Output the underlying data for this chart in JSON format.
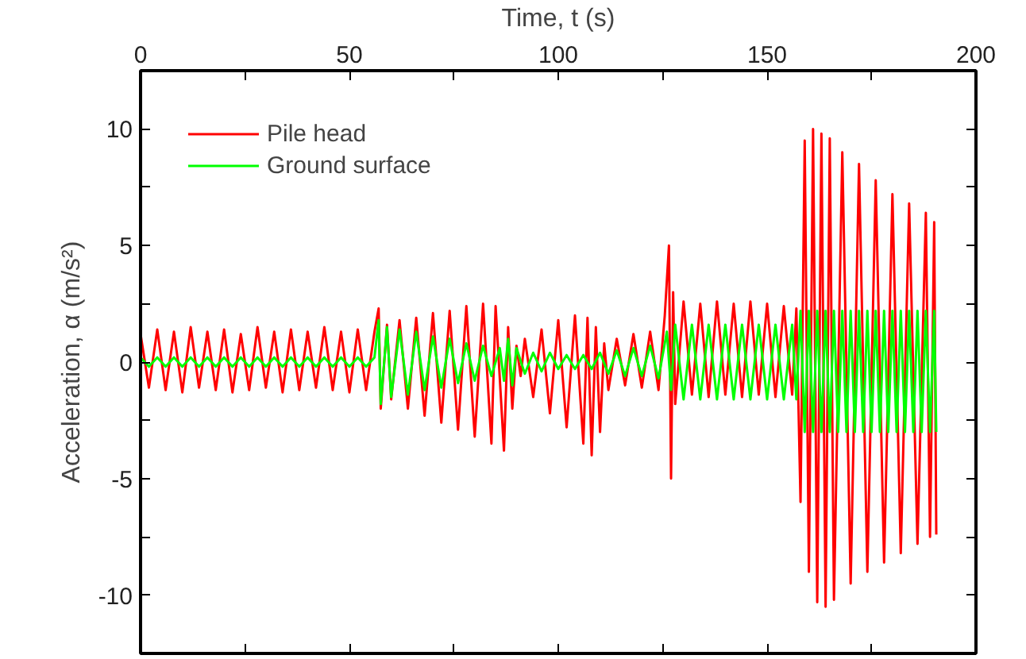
{
  "chart_data": {
    "type": "line",
    "xlabel": "Time, t (s)",
    "ylabel": "Acceleration, α (m/s²)",
    "xlim": [
      0,
      200
    ],
    "ylim": [
      -12.5,
      12.5
    ],
    "xticks": [
      0,
      {
        "value": 25,
        "label": null
      },
      50,
      {
        "value": 75,
        "label": null
      },
      100,
      {
        "value": 125,
        "label": null
      },
      150,
      {
        "value": 175,
        "label": null
      },
      200
    ],
    "yticks": [
      -10,
      {
        "value": -7.5,
        "label": null
      },
      -5,
      {
        "value": -2.5,
        "label": null
      },
      0,
      {
        "value": 2.5,
        "label": null
      },
      5,
      {
        "value": 7.5,
        "label": null
      },
      10
    ],
    "grid": false,
    "legend": "top left",
    "marker": "none",
    "line_style": "solid",
    "series": [
      {
        "name": "Pile head",
        "color": "#ff0000",
        "x": [
          0,
          2,
          4,
          6,
          8,
          10,
          12,
          14,
          16,
          18,
          20,
          22,
          24,
          26,
          28,
          30,
          32,
          34,
          36,
          38,
          40,
          42,
          44,
          46,
          48,
          50,
          52,
          54,
          56,
          57,
          57.5,
          59,
          60,
          62,
          64,
          66,
          68,
          70,
          72,
          74,
          76,
          78,
          80,
          82,
          84,
          85,
          87,
          88,
          89,
          90,
          91,
          92,
          94,
          96,
          98,
          100,
          102,
          104,
          106,
          107,
          108,
          109,
          110,
          111,
          112,
          114,
          116,
          118,
          120,
          122,
          124,
          125.5,
          126.5,
          127,
          127.5,
          128,
          130,
          132,
          134,
          136,
          138,
          140,
          142,
          144,
          146,
          148,
          150,
          152,
          154,
          156,
          157,
          158,
          159,
          160,
          161,
          162,
          163,
          164,
          165,
          166,
          168,
          170,
          172,
          174,
          176,
          178,
          180,
          182,
          184,
          186,
          188,
          189,
          190,
          190.5
        ],
        "values": [
          1.2,
          -1.1,
          1.4,
          -1.2,
          1.3,
          -1.3,
          1.5,
          -1.1,
          1.3,
          -1.2,
          1.4,
          -1.3,
          1.2,
          -1.2,
          1.5,
          -1.1,
          1.3,
          -1.3,
          1.4,
          -1.2,
          1.3,
          -1.1,
          1.5,
          -1.2,
          1.3,
          -1.3,
          1.4,
          -1.2,
          1.3,
          2.3,
          -2.0,
          1.6,
          -1.6,
          1.8,
          -2.0,
          1.9,
          -2.3,
          2.1,
          -2.6,
          2.2,
          -2.9,
          2.4,
          -3.2,
          2.5,
          -3.5,
          2.4,
          -3.8,
          1.5,
          -2.0,
          0.7,
          -0.6,
          1.0,
          -1.5,
          1.4,
          -2.2,
          1.8,
          -2.8,
          2.0,
          -3.5,
          1.9,
          -4.0,
          1.5,
          -3.0,
          0.8,
          -1.2,
          1.0,
          -1.0,
          1.2,
          -1.1,
          1.3,
          -1.2,
          2.0,
          5.0,
          -5.0,
          3.0,
          -1.8,
          2.6,
          -1.4,
          2.5,
          -1.5,
          2.6,
          -1.4,
          2.5,
          -1.5,
          2.6,
          -1.4,
          2.5,
          -1.5,
          2.4,
          -1.4,
          2.3,
          -6.0,
          9.5,
          -9.0,
          10.0,
          -10.3,
          9.8,
          -10.5,
          9.6,
          -10.2,
          9.0,
          -9.5,
          8.5,
          -9.0,
          7.8,
          -8.6,
          7.2,
          -8.2,
          6.8,
          -7.8,
          6.4,
          -7.5,
          6.0,
          -7.4
        ]
      },
      {
        "name": "Ground surface",
        "color": "#00ff00",
        "x": [
          0,
          2,
          4,
          6,
          8,
          10,
          12,
          14,
          16,
          18,
          20,
          22,
          24,
          26,
          28,
          30,
          32,
          34,
          36,
          38,
          40,
          42,
          44,
          46,
          48,
          50,
          52,
          54,
          56,
          57,
          57.5,
          59,
          60,
          62,
          64,
          66,
          68,
          70,
          72,
          74,
          76,
          78,
          80,
          82,
          84,
          86,
          87,
          88,
          89,
          90,
          92,
          94,
          96,
          98,
          100,
          102,
          104,
          106,
          108,
          110,
          112,
          114,
          116,
          118,
          120,
          122,
          124,
          126,
          127,
          128,
          130,
          132,
          134,
          136,
          138,
          140,
          142,
          144,
          146,
          148,
          150,
          152,
          154,
          156,
          157,
          158,
          159,
          160,
          161,
          162,
          163,
          164,
          165,
          166,
          167,
          168,
          169,
          170,
          171,
          172,
          173,
          174,
          175,
          176,
          177,
          178,
          179,
          180,
          181,
          182,
          183,
          184,
          185,
          186,
          187,
          188,
          189,
          190,
          190.5
        ],
        "values": [
          0.2,
          -0.2,
          0.2,
          -0.2,
          0.2,
          -0.2,
          0.2,
          -0.2,
          0.2,
          -0.2,
          0.2,
          -0.2,
          0.2,
          -0.2,
          0.2,
          -0.2,
          0.2,
          -0.2,
          0.2,
          -0.2,
          0.2,
          -0.2,
          0.2,
          -0.2,
          0.2,
          -0.2,
          0.2,
          -0.2,
          0.2,
          1.8,
          -1.8,
          1.5,
          -1.5,
          1.4,
          -1.4,
          1.3,
          -1.2,
          1.1,
          -1.1,
          1.0,
          -0.9,
          0.8,
          -0.8,
          0.7,
          -0.6,
          0.6,
          -0.8,
          1.0,
          -1.0,
          0.6,
          -0.5,
          0.4,
          -0.4,
          0.4,
          -0.3,
          0.3,
          -0.3,
          0.3,
          -0.3,
          0.4,
          -0.5,
          0.5,
          -0.6,
          0.6,
          -0.6,
          0.7,
          -0.7,
          1.3,
          -1.2,
          1.6,
          -1.6,
          1.6,
          -1.6,
          1.6,
          -1.6,
          1.6,
          -1.6,
          1.6,
          -1.6,
          1.6,
          -1.6,
          1.6,
          -1.6,
          1.6,
          -1.6,
          2.2,
          -3.0,
          2.2,
          -3.0,
          2.2,
          -3.0,
          2.2,
          -3.0,
          2.2,
          -3.0,
          2.2,
          -3.0,
          2.2,
          -3.0,
          2.2,
          -3.0,
          2.2,
          -3.0,
          2.2,
          -3.0,
          2.2,
          -3.0,
          2.2,
          -3.0,
          2.2,
          -3.0,
          2.2,
          -3.0,
          2.2,
          -3.0,
          2.2,
          -3.0,
          2.2,
          -3.0
        ]
      }
    ]
  }
}
